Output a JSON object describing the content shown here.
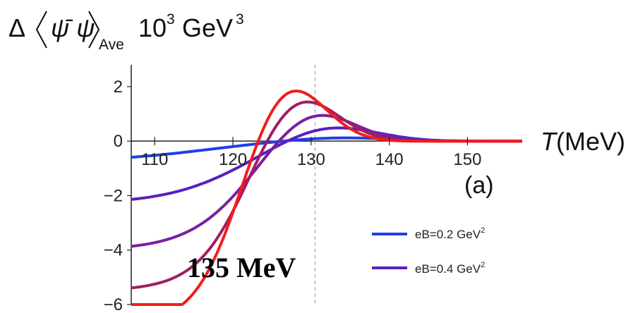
{
  "chart_data": {
    "type": "line",
    "title": "",
    "ylabel": {
      "delta": "Δ",
      "symbol": "ψ̄ ψ",
      "subscript": "Ave",
      "units_base": "10",
      "units_exp": "3",
      "units_rest": "GeV",
      "units_rest_exp": "3"
    },
    "xlabel": {
      "var": "T",
      "unit": "(MeV)"
    },
    "panel_label": "(a)",
    "annotation": "135 MeV",
    "xlim": [
      107,
      157
    ],
    "ylim": [
      -6,
      2.8
    ],
    "x_ticks": [
      110,
      120,
      130,
      140,
      150
    ],
    "y_ticks": [
      2,
      0,
      -2,
      -4,
      -6
    ],
    "y_tick_labels": [
      "2",
      "0",
      "−2",
      "−4",
      "−6"
    ],
    "vline_x": 130.5,
    "legend": [
      {
        "label": "eB=0.2 GeV",
        "sup": "2",
        "color": "#1f3fe8"
      },
      {
        "label": "eB=0.4 GeV",
        "sup": "2",
        "color": "#5b1fc0"
      }
    ],
    "series": [
      {
        "color": "#1f3fe8",
        "A": 0.15,
        "c": 133,
        "s": 7,
        "L": -0.75,
        "k": 115,
        "w": 6
      },
      {
        "color": "#5b1fc0",
        "A": 0.65,
        "c": 132,
        "s": 6,
        "L": -2.3,
        "k": 120,
        "w": 5
      },
      {
        "color": "#7a1f9e",
        "A": 1.3,
        "c": 130,
        "s": 5.2,
        "L": -4.0,
        "k": 121,
        "w": 4.2
      },
      {
        "color": "#a01e64",
        "A": 2.0,
        "c": 128,
        "s": 5,
        "L": -5.5,
        "k": 121,
        "w": 3.6
      },
      {
        "color": "#f21c1c",
        "A": 2.6,
        "c": 126.5,
        "s": 4.8,
        "L": -6.8,
        "k": 120.5,
        "w": 3.3
      }
    ]
  }
}
